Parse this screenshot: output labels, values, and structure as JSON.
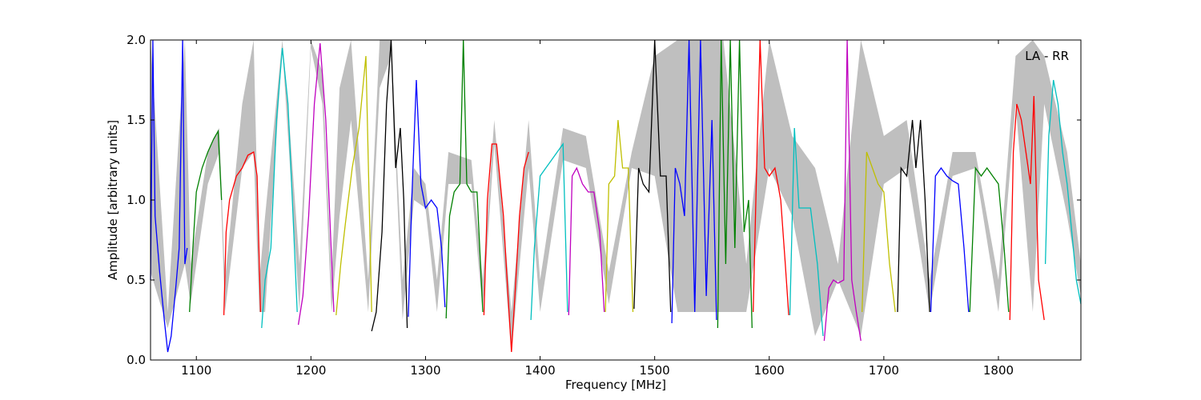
{
  "chart_data": {
    "type": "line",
    "title": "",
    "annotation": "LA - RR",
    "xlabel": "Frequency [MHz]",
    "ylabel": "Amplitude [arbitrary units]",
    "xlim": [
      1060,
      1872
    ],
    "ylim": [
      0,
      2.0
    ],
    "xticks": [
      1100,
      1200,
      1300,
      1400,
      1500,
      1600,
      1700,
      1800
    ],
    "xtick_labels": [
      "1100",
      "1200",
      "1300",
      "1400",
      "1500",
      "1600",
      "1700",
      "1800"
    ],
    "yticks": [
      0.0,
      0.5,
      1.0,
      1.5,
      2.0
    ],
    "ytick_labels": [
      "0.0",
      "0.5",
      "1.0",
      "1.5",
      "2.0"
    ],
    "grid": false,
    "legend": "none",
    "background_envelope": {
      "color": "#bfbfbf",
      "x": [
        1060,
        1075,
        1090,
        1095,
        1110,
        1120,
        1125,
        1140,
        1150,
        1155,
        1160,
        1175,
        1180,
        1190,
        1200,
        1210,
        1218,
        1225,
        1235,
        1250,
        1260,
        1270,
        1280,
        1290,
        1300,
        1310,
        1320,
        1340,
        1350,
        1360,
        1375,
        1390,
        1400,
        1420,
        1440,
        1460,
        1480,
        1500,
        1520,
        1540,
        1560,
        1580,
        1600,
        1620,
        1640,
        1660,
        1680,
        1700,
        1720,
        1740,
        1760,
        1780,
        1800,
        1815,
        1830,
        1840,
        1860,
        1872
      ],
      "y_low": [
        0.55,
        0.2,
        0.6,
        0.35,
        1.1,
        1.3,
        0.3,
        1.2,
        1.3,
        0.3,
        0.3,
        1.95,
        1.4,
        0.3,
        1.95,
        1.6,
        0.3,
        0.9,
        1.5,
        0.3,
        1.7,
        1.9,
        0.25,
        1.0,
        0.95,
        0.3,
        1.1,
        1.1,
        0.3,
        1.35,
        0.05,
        1.2,
        0.3,
        1.25,
        1.2,
        0.35,
        1.2,
        1.15,
        0.3,
        0.3,
        0.3,
        0.3,
        1.2,
        0.9,
        0.15,
        0.5,
        0.15,
        1.1,
        1.2,
        0.3,
        1.15,
        1.2,
        0.3,
        1.6,
        0.3,
        1.6,
        0.9,
        0.4
      ],
      "y_high": [
        2.0,
        0.3,
        2.0,
        0.6,
        1.3,
        1.45,
        0.5,
        1.6,
        2.0,
        0.5,
        0.9,
        2.0,
        1.6,
        0.6,
        2.0,
        1.8,
        0.5,
        1.7,
        2.0,
        0.5,
        2.0,
        2.0,
        0.5,
        1.2,
        1.1,
        0.5,
        1.3,
        1.25,
        0.5,
        1.5,
        0.3,
        1.5,
        0.5,
        1.45,
        1.4,
        0.55,
        1.3,
        1.9,
        2.0,
        2.0,
        2.0,
        0.6,
        2.0,
        1.4,
        1.2,
        0.6,
        2.0,
        1.4,
        1.5,
        0.5,
        1.3,
        1.3,
        0.5,
        1.9,
        2.0,
        1.9,
        1.3,
        0.6
      ]
    },
    "series": [
      {
        "color": "#0000ff",
        "x": [
          1060,
          1062,
          1064,
          1068,
          1072,
          1075,
          1078,
          1082,
          1085,
          1088,
          1090,
          1092
        ],
        "y": [
          0.5,
          2.0,
          0.9,
          0.55,
          0.25,
          0.05,
          0.15,
          0.45,
          0.7,
          2.0,
          0.6,
          0.7
        ]
      },
      {
        "color": "#008000",
        "x": [
          1094,
          1097,
          1100,
          1105,
          1110,
          1115,
          1119,
          1122
        ],
        "y": [
          0.3,
          0.7,
          1.05,
          1.2,
          1.3,
          1.38,
          1.43,
          1.0
        ]
      },
      {
        "color": "#ff0000",
        "x": [
          1124,
          1126,
          1129,
          1135,
          1140,
          1145,
          1150,
          1153,
          1156
        ],
        "y": [
          0.28,
          0.8,
          1.0,
          1.15,
          1.2,
          1.28,
          1.3,
          1.15,
          0.3
        ]
      },
      {
        "color": "#00bfbf",
        "x": [
          1157,
          1160,
          1165,
          1170,
          1175,
          1180,
          1185,
          1188
        ],
        "y": [
          0.2,
          0.5,
          0.7,
          1.5,
          1.95,
          1.6,
          0.8,
          0.3
        ]
      },
      {
        "color": "#bf00bf",
        "x": [
          1189,
          1193,
          1198,
          1203,
          1208,
          1213,
          1217,
          1220
        ],
        "y": [
          0.22,
          0.4,
          0.9,
          1.6,
          1.98,
          1.5,
          0.8,
          0.3
        ]
      },
      {
        "color": "#bfbf00",
        "x": [
          1222,
          1226,
          1230,
          1236,
          1242,
          1248,
          1253
        ],
        "y": [
          0.28,
          0.6,
          0.85,
          1.2,
          1.45,
          1.9,
          0.3
        ]
      },
      {
        "color": "#000000",
        "x": [
          1253,
          1257,
          1262,
          1266,
          1270,
          1274,
          1278,
          1281,
          1284
        ],
        "y": [
          0.18,
          0.3,
          0.8,
          1.6,
          2.0,
          1.2,
          1.45,
          1.0,
          0.2
        ]
      },
      {
        "color": "#0000ff",
        "x": [
          1285,
          1288,
          1292,
          1296,
          1300,
          1305,
          1310,
          1314,
          1317
        ],
        "y": [
          0.27,
          1.0,
          1.75,
          1.1,
          0.95,
          1.0,
          0.95,
          0.7,
          0.33
        ]
      },
      {
        "color": "#008000",
        "x": [
          1318,
          1321,
          1325,
          1330,
          1333,
          1336,
          1340,
          1345,
          1350
        ],
        "y": [
          0.26,
          0.9,
          1.05,
          1.1,
          2.0,
          1.1,
          1.05,
          1.05,
          0.3
        ]
      },
      {
        "color": "#ff0000",
        "x": [
          1351,
          1354,
          1358,
          1362,
          1368,
          1372,
          1375,
          1378,
          1382,
          1386,
          1390
        ],
        "y": [
          0.28,
          1.0,
          1.35,
          1.35,
          0.9,
          0.4,
          0.05,
          0.4,
          0.9,
          1.2,
          1.3
        ]
      },
      {
        "color": "#00bfbf",
        "x": [
          1392,
          1395,
          1400,
          1405,
          1410,
          1415,
          1420,
          1424
        ],
        "y": [
          0.25,
          0.7,
          1.15,
          1.2,
          1.25,
          1.3,
          1.35,
          0.3
        ]
      },
      {
        "color": "#bf00bf",
        "x": [
          1425,
          1428,
          1432,
          1437,
          1442,
          1447,
          1452,
          1456
        ],
        "y": [
          0.28,
          1.15,
          1.2,
          1.1,
          1.05,
          1.05,
          0.8,
          0.3
        ]
      },
      {
        "color": "#bfbf00",
        "x": [
          1457,
          1460,
          1465,
          1468,
          1472,
          1477,
          1481
        ],
        "y": [
          0.3,
          1.1,
          1.15,
          1.5,
          1.2,
          1.2,
          0.3
        ]
      },
      {
        "color": "#000000",
        "x": [
          1482,
          1486,
          1490,
          1495,
          1500,
          1505,
          1510,
          1514
        ],
        "y": [
          0.32,
          1.2,
          1.1,
          1.05,
          2.0,
          1.15,
          1.15,
          0.3
        ]
      },
      {
        "color": "#0000ff",
        "x": [
          1515,
          1518,
          1522,
          1526,
          1530,
          1535,
          1540,
          1545,
          1550,
          1554
        ],
        "y": [
          0.23,
          1.2,
          1.1,
          0.9,
          2.0,
          0.3,
          2.0,
          0.4,
          1.5,
          0.25
        ]
      },
      {
        "color": "#008000",
        "x": [
          1555,
          1558,
          1562,
          1566,
          1570,
          1574,
          1578,
          1582,
          1585
        ],
        "y": [
          0.2,
          2.0,
          0.6,
          2.0,
          0.7,
          2.0,
          0.8,
          1.0,
          0.2
        ]
      },
      {
        "color": "#ff0000",
        "x": [
          1586,
          1589,
          1592,
          1596,
          1600,
          1605,
          1610,
          1614,
          1617
        ],
        "y": [
          0.3,
          1.2,
          2.0,
          1.2,
          1.15,
          1.2,
          1.0,
          0.6,
          0.28
        ]
      },
      {
        "color": "#00bfbf",
        "x": [
          1618,
          1622,
          1626,
          1630,
          1636,
          1642,
          1647
        ],
        "y": [
          0.28,
          1.45,
          0.95,
          0.95,
          0.95,
          0.6,
          0.15
        ]
      },
      {
        "color": "#bf00bf",
        "x": [
          1648,
          1652,
          1656,
          1660,
          1665,
          1668,
          1672,
          1676,
          1680
        ],
        "y": [
          0.12,
          0.45,
          0.5,
          0.48,
          0.5,
          2.0,
          0.5,
          0.3,
          0.12
        ]
      },
      {
        "color": "#bfbf00",
        "x": [
          1681,
          1685,
          1690,
          1695,
          1700,
          1705,
          1710
        ],
        "y": [
          0.3,
          1.3,
          1.2,
          1.1,
          1.05,
          0.6,
          0.3
        ]
      },
      {
        "color": "#000000",
        "x": [
          1712,
          1715,
          1720,
          1725,
          1728,
          1732,
          1736,
          1740
        ],
        "y": [
          0.3,
          1.2,
          1.15,
          1.5,
          1.2,
          1.5,
          1.0,
          0.3
        ]
      },
      {
        "color": "#0000ff",
        "x": [
          1741,
          1745,
          1750,
          1755,
          1760,
          1765,
          1770,
          1774
        ],
        "y": [
          0.3,
          1.15,
          1.2,
          1.15,
          1.12,
          1.1,
          0.7,
          0.3
        ]
      },
      {
        "color": "#008000",
        "x": [
          1775,
          1780,
          1785,
          1790,
          1795,
          1800,
          1805,
          1809
        ],
        "y": [
          0.3,
          1.2,
          1.15,
          1.2,
          1.15,
          1.1,
          0.7,
          0.3
        ]
      },
      {
        "color": "#ff0000",
        "x": [
          1810,
          1813,
          1816,
          1820,
          1824,
          1828,
          1831,
          1835,
          1840
        ],
        "y": [
          0.25,
          1.3,
          1.6,
          1.5,
          1.3,
          1.1,
          1.65,
          0.5,
          0.25
        ]
      },
      {
        "color": "#00bfbf",
        "x": [
          1841,
          1844,
          1848,
          1852,
          1856,
          1860,
          1864,
          1868,
          1872
        ],
        "y": [
          0.6,
          1.4,
          1.75,
          1.6,
          1.3,
          1.1,
          0.8,
          0.5,
          0.35
        ]
      }
    ]
  }
}
